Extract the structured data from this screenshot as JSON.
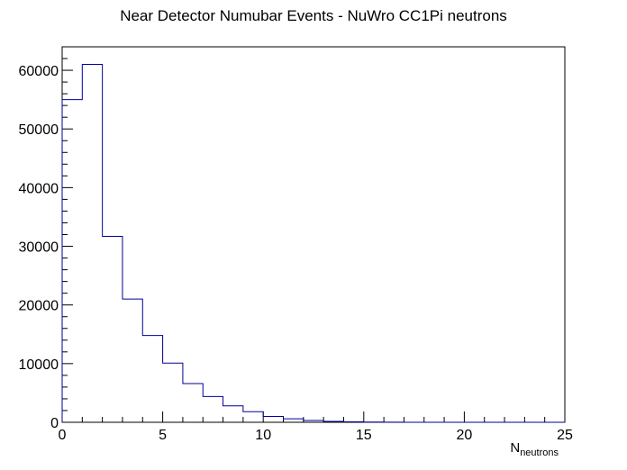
{
  "chart_data": {
    "type": "bar",
    "style": "step-histogram",
    "title": "Near Detector Numubar Events - NuWro CC1Pi neutrons",
    "xlabel": {
      "main": "N",
      "sub": "neutrons"
    },
    "ylabel": "",
    "xlim": [
      0,
      25
    ],
    "ylim": [
      0,
      64000
    ],
    "x_ticks": [
      0,
      5,
      10,
      15,
      20,
      25
    ],
    "y_ticks": [
      0,
      10000,
      20000,
      30000,
      40000,
      50000,
      60000
    ],
    "bin_width": 1,
    "bins": [
      0,
      1,
      2,
      3,
      4,
      5,
      6,
      7,
      8,
      9,
      10,
      11,
      12,
      13,
      14,
      15,
      16,
      17,
      18,
      19,
      20,
      21,
      22,
      23,
      24
    ],
    "values": [
      55000,
      61000,
      31700,
      21000,
      14800,
      10100,
      6600,
      4400,
      2800,
      1800,
      1000,
      600,
      300,
      150,
      70,
      30,
      10,
      0,
      0,
      0,
      0,
      0,
      0,
      0,
      0
    ],
    "line_color": "#000099",
    "frame_color": "#000000",
    "grid": false,
    "legend": "none"
  }
}
